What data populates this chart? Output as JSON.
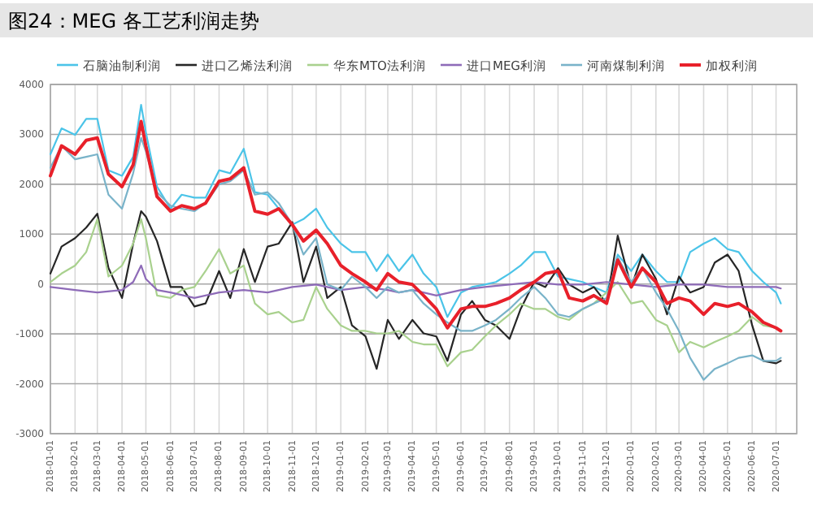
{
  "chart_data": {
    "type": "line",
    "title": "图24：MEG 各工艺利润走势",
    "legend": "top",
    "grid": true,
    "ylim": [
      -3000,
      4000
    ],
    "yticks": [
      -3000,
      -2000,
      -1000,
      0,
      1000,
      2000,
      3000,
      4000
    ],
    "xlim": [
      "2018-01-01",
      "2020-07-27"
    ],
    "xticks": [
      "2018-01-01",
      "2018-02-01",
      "2018-03-01",
      "2018-04-01",
      "2018-05-01",
      "2018-06-01",
      "2018-07-01",
      "2018-08-01",
      "2018-09-01",
      "2018-10-01",
      "2018-11-01",
      "2018-12-01",
      "2019-01-01",
      "2019-02-01",
      "2019-03-01",
      "2019-04-01",
      "2019-05-01",
      "2019-06-01",
      "2019-07-01",
      "2019-08-01",
      "2019-09-01",
      "2019-10-01",
      "2019-11-01",
      "2019-12-01",
      "2020-01-01",
      "2020-02-01",
      "2020-03-01",
      "2020-04-01",
      "2020-05-01",
      "2020-06-01",
      "2020-07-01"
    ],
    "x": [
      "2018-01-01",
      "2018-01-15",
      "2018-02-01",
      "2018-02-15",
      "2018-03-01",
      "2018-03-15",
      "2018-04-01",
      "2018-04-15",
      "2018-04-25",
      "2018-05-01",
      "2018-05-15",
      "2018-06-01",
      "2018-06-15",
      "2018-07-01",
      "2018-07-15",
      "2018-08-01",
      "2018-08-15",
      "2018-09-01",
      "2018-09-15",
      "2018-10-01",
      "2018-10-15",
      "2018-11-01",
      "2018-11-15",
      "2018-12-01",
      "2018-12-15",
      "2019-01-01",
      "2019-01-15",
      "2019-02-01",
      "2019-02-15",
      "2019-03-01",
      "2019-03-15",
      "2019-04-01",
      "2019-04-15",
      "2019-05-01",
      "2019-05-15",
      "2019-06-01",
      "2019-06-15",
      "2019-07-01",
      "2019-07-15",
      "2019-08-01",
      "2019-08-15",
      "2019-09-01",
      "2019-09-15",
      "2019-10-01",
      "2019-10-15",
      "2019-11-01",
      "2019-11-15",
      "2019-12-01",
      "2019-12-15",
      "2020-01-01",
      "2020-01-15",
      "2020-02-01",
      "2020-02-15",
      "2020-03-01",
      "2020-03-15",
      "2020-04-01",
      "2020-04-15",
      "2020-05-01",
      "2020-05-15",
      "2020-06-01",
      "2020-06-15",
      "2020-07-01",
      "2020-07-07"
    ],
    "series": [
      {
        "name": "石脑油制利润",
        "color": "#4bc4e8",
        "values": [
          2600,
          3120,
          2990,
          3310,
          3310,
          2280,
          2170,
          2550,
          3590,
          3040,
          1950,
          1510,
          1790,
          1730,
          1730,
          2280,
          2220,
          2710,
          1840,
          1790,
          1510,
          1190,
          1300,
          1510,
          1130,
          810,
          640,
          640,
          260,
          590,
          260,
          590,
          210,
          -60,
          -660,
          -170,
          -60,
          -10,
          40,
          210,
          370,
          640,
          640,
          150,
          100,
          40,
          -60,
          -170,
          590,
          260,
          590,
          260,
          40,
          40,
          640,
          810,
          920,
          700,
          640,
          260,
          40,
          -170,
          -390
        ]
      },
      {
        "name": "进口乙烯法利润",
        "color": "#262626",
        "values": [
          210,
          750,
          920,
          1130,
          1410,
          320,
          -280,
          810,
          1460,
          1350,
          860,
          -60,
          -60,
          -450,
          -390,
          260,
          -280,
          700,
          40,
          750,
          810,
          1240,
          40,
          750,
          -280,
          -60,
          -830,
          -1050,
          -1700,
          -720,
          -1100,
          -720,
          -990,
          -1050,
          -1540,
          -610,
          -340,
          -720,
          -830,
          -1100,
          -500,
          40,
          -60,
          320,
          -10,
          -170,
          -60,
          -390,
          970,
          -60,
          590,
          100,
          -610,
          150,
          -170,
          -60,
          430,
          590,
          260,
          -830,
          -1540,
          -1590,
          -1540
        ]
      },
      {
        "name": "华东MTO法利润",
        "color": "#a9d18e",
        "values": [
          40,
          210,
          370,
          640,
          1300,
          150,
          370,
          810,
          1300,
          920,
          -230,
          -280,
          -120,
          -60,
          260,
          700,
          210,
          370,
          -390,
          -610,
          -560,
          -770,
          -720,
          -60,
          -500,
          -830,
          -940,
          -940,
          -990,
          -990,
          -940,
          -1160,
          -1210,
          -1210,
          -1650,
          -1370,
          -1320,
          -1050,
          -830,
          -610,
          -390,
          -500,
          -500,
          -660,
          -720,
          -500,
          -390,
          -170,
          40,
          -390,
          -340,
          -720,
          -830,
          -1370,
          -1160,
          -1270,
          -1160,
          -1050,
          -940,
          -660,
          -830,
          -880,
          -940
        ]
      },
      {
        "name": "进口MEG利润",
        "color": "#8e6bb8",
        "x": [
          "2018-01-01",
          "2018-02-01",
          "2018-03-01",
          "2018-04-01",
          "2018-04-15",
          "2018-04-25",
          "2018-05-01",
          "2018-05-15",
          "2018-06-01",
          "2018-07-01",
          "2018-08-01",
          "2018-09-01",
          "2018-10-01",
          "2018-11-01",
          "2018-12-01",
          "2019-01-01",
          "2019-02-01",
          "2019-03-01",
          "2019-03-15",
          "2019-04-01",
          "2019-05-01",
          "2019-06-01",
          "2019-07-01",
          "2019-08-01",
          "2019-09-01",
          "2019-10-01",
          "2019-11-01",
          "2019-12-01",
          "2020-01-01",
          "2020-02-01",
          "2020-03-01",
          "2020-04-01",
          "2020-05-01",
          "2020-06-01",
          "2020-07-01",
          "2020-07-07"
        ],
        "values": [
          -60,
          -120,
          -170,
          -120,
          40,
          370,
          100,
          -120,
          -170,
          -280,
          -170,
          -120,
          -170,
          -60,
          -10,
          -120,
          -60,
          -120,
          -170,
          -120,
          -230,
          -120,
          -60,
          -10,
          40,
          -10,
          -10,
          40,
          -10,
          -60,
          -10,
          -10,
          -60,
          -60,
          -60,
          -90
        ]
      },
      {
        "name": "河南煤制利润",
        "color": "#79b3c9",
        "values": [
          2330,
          2770,
          2500,
          2550,
          2600,
          1790,
          1510,
          2220,
          2930,
          2660,
          1840,
          1570,
          1510,
          1460,
          1620,
          2000,
          2060,
          2280,
          1790,
          1840,
          1620,
          1190,
          590,
          920,
          -10,
          -120,
          150,
          -60,
          -280,
          -60,
          -170,
          -120,
          -390,
          -610,
          -770,
          -940,
          -940,
          -830,
          -720,
          -500,
          -280,
          -60,
          -280,
          -610,
          -660,
          -500,
          -390,
          -280,
          530,
          40,
          320,
          -170,
          -500,
          -940,
          -1480,
          -1920,
          -1700,
          -1590,
          -1480,
          -1430,
          -1540,
          -1540,
          -1480
        ]
      },
      {
        "name": "加权利润",
        "color": "#e8202a",
        "values": [
          2170,
          2770,
          2600,
          2880,
          2930,
          2200,
          1950,
          2390,
          3260,
          2770,
          1750,
          1460,
          1570,
          1510,
          1620,
          2060,
          2110,
          2330,
          1460,
          1400,
          1510,
          1190,
          860,
          1080,
          810,
          370,
          210,
          40,
          -120,
          210,
          40,
          -10,
          -230,
          -500,
          -880,
          -500,
          -450,
          -450,
          -390,
          -280,
          -120,
          40,
          210,
          260,
          -280,
          -340,
          -230,
          -390,
          480,
          -60,
          320,
          40,
          -390,
          -280,
          -340,
          -610,
          -390,
          -450,
          -390,
          -560,
          -770,
          -880,
          -940
        ]
      }
    ]
  }
}
